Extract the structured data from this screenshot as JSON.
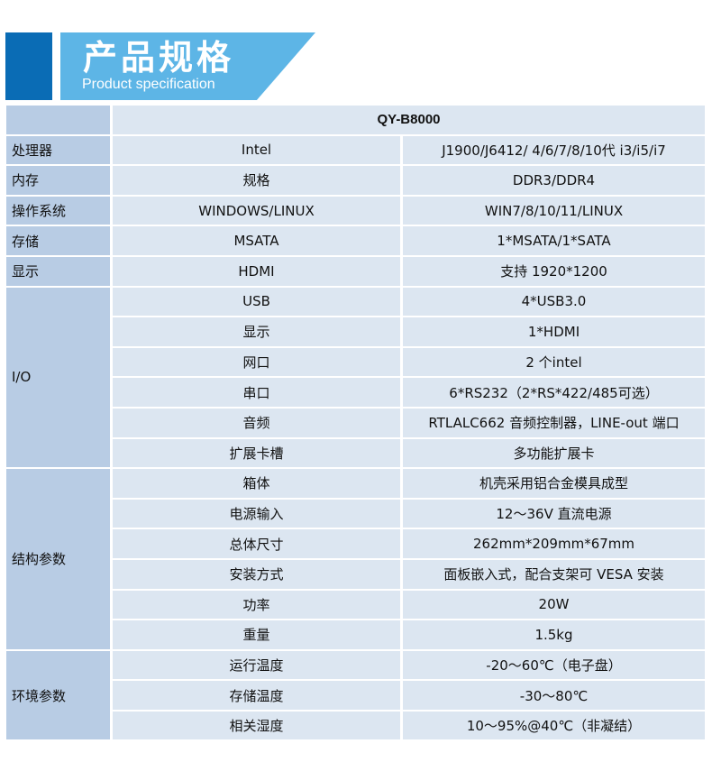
{
  "banner": {
    "title_cn": "产品规格",
    "title_en": "Product specification"
  },
  "colors": {
    "banner_dark": "#0a6cb5",
    "banner_light": "#5db5e6",
    "category_bg": "#b8cce4",
    "cell_bg": "#dce6f1"
  },
  "table": {
    "model": "QY-B8000",
    "groups": [
      {
        "category": "处理器",
        "rows": [
          {
            "label": "Intel",
            "value": "J1900/J6412/ 4/6/7/8/10代 i3/i5/i7"
          }
        ]
      },
      {
        "category": "内存",
        "rows": [
          {
            "label": "规格",
            "value": "DDR3/DDR4"
          }
        ]
      },
      {
        "category": "操作系统",
        "rows": [
          {
            "label": "WINDOWS/LINUX",
            "value": "WIN7/8/10/11/LINUX"
          }
        ]
      },
      {
        "category": "存储",
        "rows": [
          {
            "label": "MSATA",
            "value": "1*MSATA/1*SATA"
          }
        ]
      },
      {
        "category": "显示",
        "rows": [
          {
            "label": "HDMI",
            "value": "支持 1920*1200"
          }
        ]
      },
      {
        "category": "I/O",
        "rows": [
          {
            "label": "USB",
            "value": "4*USB3.0"
          },
          {
            "label": "显示",
            "value": "1*HDMI"
          },
          {
            "label": "网口",
            "value": "2 个intel"
          },
          {
            "label": "串口",
            "value": "6*RS232（2*RS*422/485可选）"
          },
          {
            "label": "音频",
            "value": "RTLALC662 音频控制器，LINE-out 端口"
          },
          {
            "label": "扩展卡槽",
            "value": "多功能扩展卡"
          }
        ]
      },
      {
        "category": "结构参数",
        "rows": [
          {
            "label": "箱体",
            "value": "机壳采用铝合金模具成型"
          },
          {
            "label": "电源输入",
            "value": "12～36V 直流电源"
          },
          {
            "label": "总体尺寸",
            "value": "262mm*209mm*67mm"
          },
          {
            "label": "安装方式",
            "value": "面板嵌入式，配合支架可 VESA 安装"
          },
          {
            "label": "功率",
            "value": "20W"
          },
          {
            "label": "重量",
            "value": "1.5kg"
          }
        ]
      },
      {
        "category": "环境参数",
        "rows": [
          {
            "label": "运行温度",
            "value": "-20～60℃（电子盘）"
          },
          {
            "label": "存储温度",
            "value": "-30～80℃"
          },
          {
            "label": "相关湿度",
            "value": "10～95%@40℃（非凝结）"
          }
        ]
      }
    ]
  }
}
